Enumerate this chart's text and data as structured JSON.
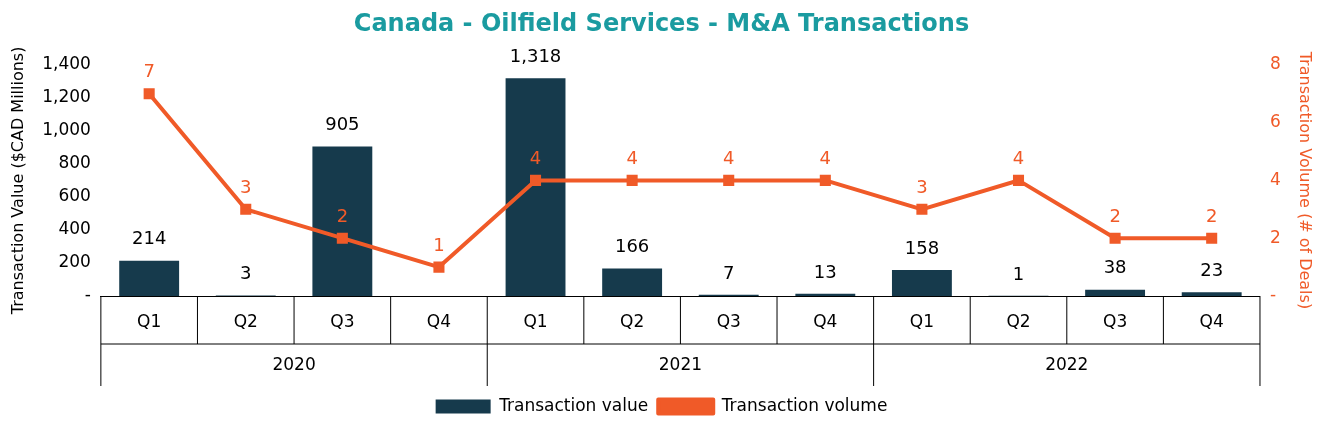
{
  "chart_data": {
    "type": "bar",
    "title": "Canada - Oilfield Services - M&A Transactions",
    "ylabel": "Transaction Value ($CAD Millions)",
    "y2label": "Transaction Volume (# of Deals)",
    "categories": [
      "Q1",
      "Q2",
      "Q3",
      "Q4",
      "Q1",
      "Q2",
      "Q3",
      "Q4",
      "Q1",
      "Q2",
      "Q3",
      "Q4"
    ],
    "annotations": [
      "2020",
      "2021",
      "2022"
    ],
    "series": [
      {
        "name": "Transaction value",
        "color": "#163a4c",
        "values": [
          214,
          3,
          905,
          0,
          1318,
          166,
          7,
          13,
          158,
          1,
          38,
          23
        ],
        "value_labels": [
          "214",
          "3",
          "905",
          null,
          "1,318",
          "166",
          "7",
          "13",
          "158",
          "1",
          "38",
          "23"
        ]
      },
      {
        "name": "Transaction volume",
        "type": "line",
        "axis": "y2",
        "color": "#f05a28",
        "marker": "square",
        "values": [
          7,
          3,
          2,
          1,
          4,
          4,
          4,
          4,
          3,
          4,
          2,
          2
        ],
        "value_labels": [
          "7",
          "3",
          "2",
          "1",
          "4",
          "4",
          "4",
          "4",
          "3",
          "4",
          "2",
          "2"
        ]
      }
    ],
    "ylim": [
      0,
      1400
    ],
    "yticks": [
      {
        "value": 0,
        "label": "-"
      },
      200,
      400,
      600,
      800,
      {
        "value": 1000,
        "label": "1,000"
      },
      {
        "value": 1200,
        "label": "1,200"
      },
      {
        "value": 1400,
        "label": "1,400"
      }
    ],
    "y2lim": [
      0,
      8
    ],
    "y2ticks": [
      {
        "value": 0,
        "label": "-"
      },
      2,
      4,
      6,
      8
    ],
    "grid": false,
    "legend": "bottom"
  }
}
